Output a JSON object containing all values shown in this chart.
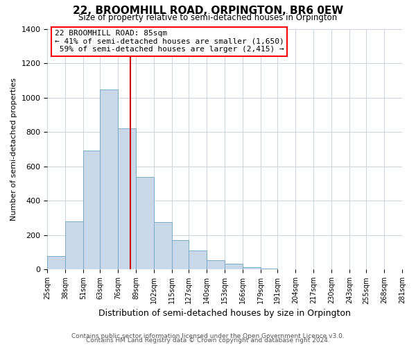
{
  "title": "22, BROOMHILL ROAD, ORPINGTON, BR6 0EW",
  "subtitle": "Size of property relative to semi-detached houses in Orpington",
  "xlabel": "Distribution of semi-detached houses by size in Orpington",
  "ylabel": "Number of semi-detached properties",
  "bar_color": "#c8d8e8",
  "bar_edge_color": "#7aaac8",
  "background_color": "#ffffff",
  "grid_color": "#c8d4e0",
  "vline_color": "#cc0000",
  "vline_x": 85,
  "annotation_title": "22 BROOMHILL ROAD: 85sqm",
  "annotation_line1": "← 41% of semi-detached houses are smaller (1,650)",
  "annotation_line2": " 59% of semi-detached houses are larger (2,415) →",
  "footer_line1": "Contains HM Land Registry data © Crown copyright and database right 2024.",
  "footer_line2": "Contains public sector information licensed under the Open Government Licence v3.0.",
  "bin_edges": [
    25,
    38,
    51,
    63,
    76,
    89,
    102,
    115,
    127,
    140,
    153,
    166,
    179,
    191,
    204,
    217,
    230,
    243,
    255,
    268,
    281
  ],
  "bin_labels": [
    "25sqm",
    "38sqm",
    "51sqm",
    "63sqm",
    "76sqm",
    "89sqm",
    "102sqm",
    "115sqm",
    "127sqm",
    "140sqm",
    "153sqm",
    "166sqm",
    "179sqm",
    "191sqm",
    "204sqm",
    "217sqm",
    "230sqm",
    "243sqm",
    "255sqm",
    "268sqm",
    "281sqm"
  ],
  "counts": [
    80,
    280,
    690,
    1045,
    820,
    540,
    275,
    170,
    110,
    55,
    35,
    15,
    5,
    2,
    1,
    1,
    0,
    0,
    0,
    0
  ],
  "ylim": [
    0,
    1400
  ],
  "yticks": [
    0,
    200,
    400,
    600,
    800,
    1000,
    1200,
    1400
  ]
}
